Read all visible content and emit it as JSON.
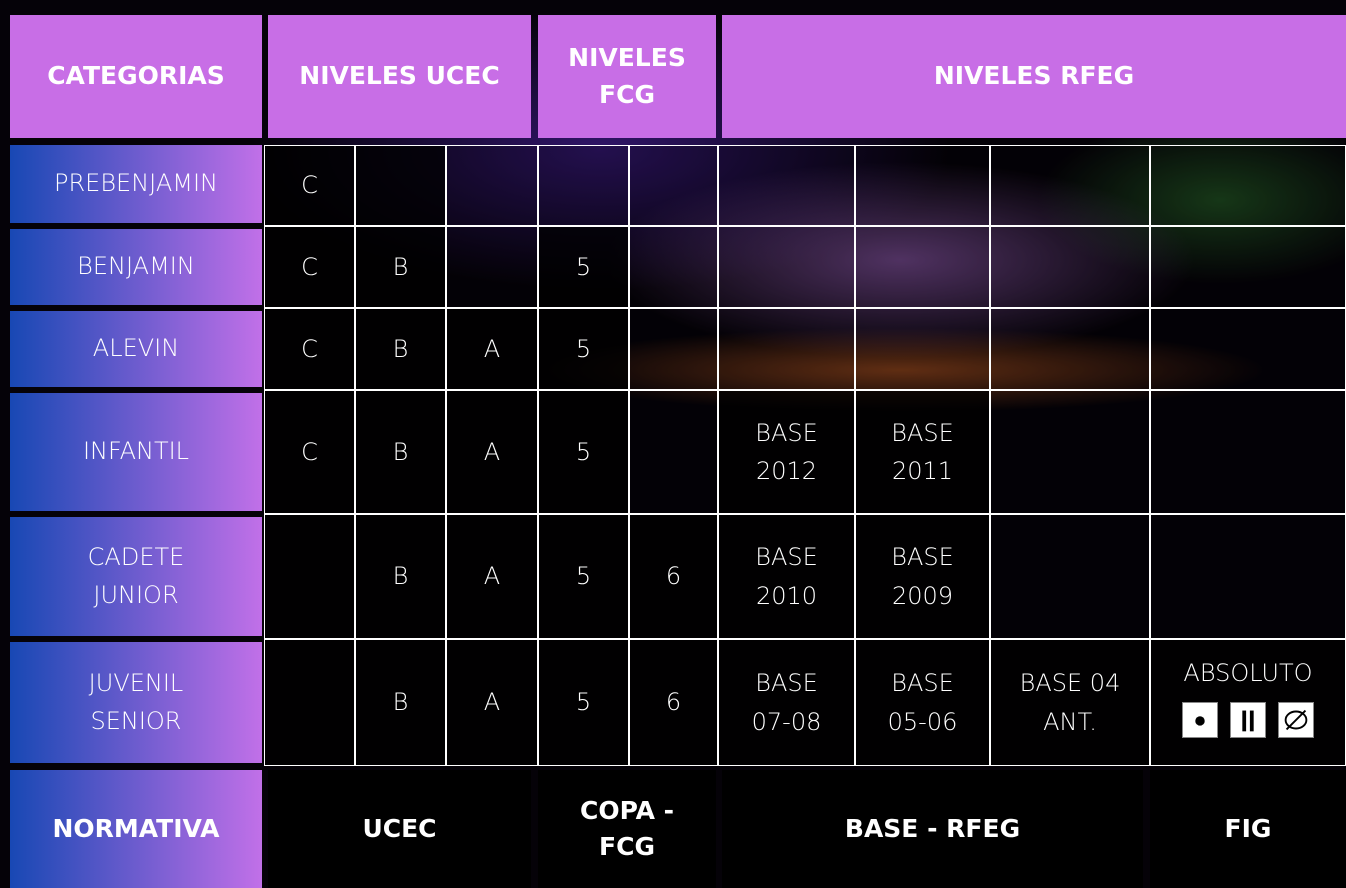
{
  "header": [
    "CATEGORIAS",
    "NIVELES UCEC",
    "NIVELES FCG",
    "NIVELES RFEG"
  ],
  "rows": [
    {
      "category": "PREBENJAMIN",
      "cells": [
        "C",
        null,
        null,
        null,
        null,
        null,
        null,
        null,
        null
      ]
    },
    {
      "category": "BENJAMIN",
      "cells": [
        "C",
        "B",
        null,
        "5",
        null,
        null,
        null,
        null,
        null
      ]
    },
    {
      "category": "ALEVIN",
      "cells": [
        "C",
        "B",
        "A",
        "5",
        null,
        null,
        null,
        null,
        null
      ]
    },
    {
      "category": "INFANTIL",
      "cells": [
        "C",
        "B",
        "A",
        "5",
        null,
        "BASE\n2012",
        "BASE\n2011",
        null,
        null
      ]
    },
    {
      "category": "CADETE\nJUNIOR",
      "cells": [
        null,
        "B",
        "A",
        "5",
        "6",
        "BASE\n2010",
        "BASE\n2009",
        null,
        null
      ]
    },
    {
      "category": "JUVENIL\nSENIOR",
      "cells": [
        null,
        "B",
        "A",
        "5",
        "6",
        "BASE\n07-08",
        "BASE\n05-06",
        "BASE 04\nANT.",
        "ABSOLUTO"
      ]
    }
  ],
  "footer": [
    "NORMATIVA",
    "UCEC",
    "COPA -\nFCG",
    "BASE - RFEG",
    "FIG"
  ]
}
